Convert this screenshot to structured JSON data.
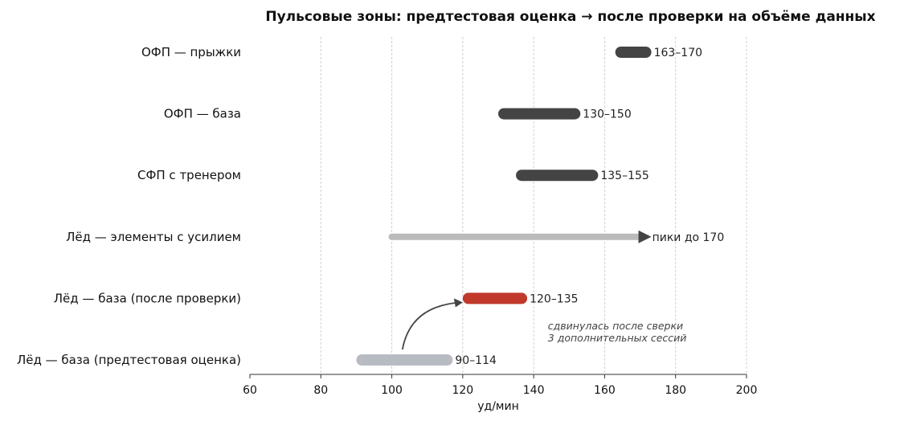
{
  "chart_data": {
    "type": "range-bar",
    "title": "Пульсовые зоны: предтестовая оценка → после проверки на объёме данных",
    "xlabel": "уд/мин",
    "ylabel": "",
    "xlim": [
      60,
      200
    ],
    "xticks": [
      60,
      80,
      100,
      120,
      140,
      160,
      180,
      200
    ],
    "grid": "vertical-dashed",
    "categories": [
      "ОФП — прыжки",
      "ОФП — база",
      "СФП с тренером",
      "Лёд — элементы с усилием",
      "Лёд — база (после проверки)",
      "Лёд — база (предтестовая оценка)"
    ],
    "ranges": [
      {
        "start": 163,
        "end": 170,
        "label": "163–170",
        "color": "#444444",
        "style": "solid"
      },
      {
        "start": 130,
        "end": 150,
        "label": "130–150",
        "color": "#444444",
        "style": "solid"
      },
      {
        "start": 135,
        "end": 155,
        "label": "135–155",
        "color": "#444444",
        "style": "solid"
      },
      {
        "start": 100,
        "end": 170,
        "label": "пики до 170",
        "color": "#bbbbbb",
        "style": "arrow"
      },
      {
        "start": 120,
        "end": 135,
        "label": "120–135",
        "color": "#c0392b",
        "style": "solid"
      },
      {
        "start": 90,
        "end": 114,
        "label": "90–114",
        "color": "#b8bcc2",
        "style": "solid"
      }
    ],
    "annotation": {
      "lines": [
        "сдвинулась после сверки",
        "3 дополнительных сессий"
      ],
      "x": 144,
      "from": {
        "x": 103,
        "category_index": 5
      },
      "to": {
        "x": 120,
        "category_index": 4
      }
    }
  }
}
